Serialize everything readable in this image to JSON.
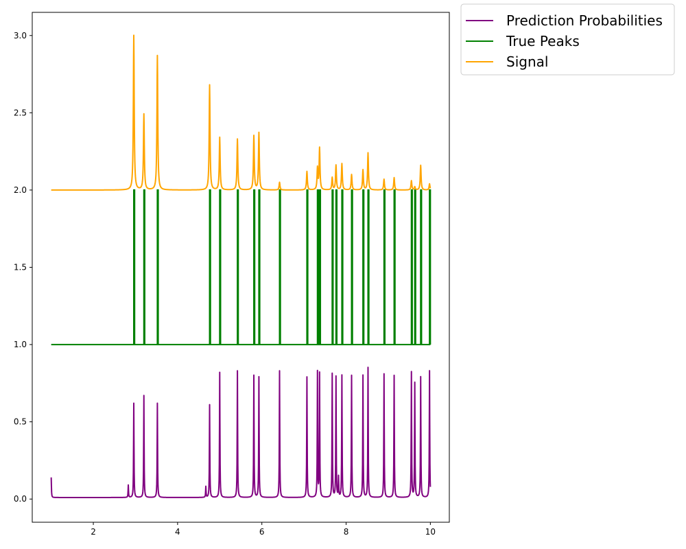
{
  "chart_data": {
    "type": "line",
    "title": "",
    "xlabel": "",
    "ylabel": "",
    "xlim": [
      0.55,
      10.45
    ],
    "ylim": [
      -0.15,
      3.15
    ],
    "grid": false,
    "x_ticks": [
      {
        "value": 2,
        "label": "2"
      },
      {
        "value": 4,
        "label": "4"
      },
      {
        "value": 6,
        "label": "6"
      },
      {
        "value": 8,
        "label": "8"
      },
      {
        "value": 10,
        "label": "10"
      }
    ],
    "y_ticks": [
      {
        "value": 0.0,
        "label": "0.0"
      },
      {
        "value": 0.5,
        "label": "0.5"
      },
      {
        "value": 1.0,
        "label": "1.0"
      },
      {
        "value": 1.5,
        "label": "1.5"
      },
      {
        "value": 2.0,
        "label": "2.0"
      },
      {
        "value": 2.5,
        "label": "2.5"
      },
      {
        "value": 3.0,
        "label": "3.0"
      }
    ],
    "legend": {
      "placement": "outside-top-right",
      "entries": [
        {
          "name": "Prediction Probabilities",
          "color": "#800080"
        },
        {
          "name": "True Peaks",
          "color": "#008000"
        },
        {
          "name": "Signal",
          "color": "#FFA500"
        }
      ]
    },
    "series": [
      {
        "name": "Prediction Probabilities",
        "color": "#800080",
        "baseline": 0.01,
        "x_range": [
          1.0,
          10.0
        ],
        "peaks": [
          {
            "x": 1.0,
            "y": 0.14
          },
          {
            "x": 2.83,
            "y": 0.09
          },
          {
            "x": 2.96,
            "y": 0.62
          },
          {
            "x": 3.2,
            "y": 0.67
          },
          {
            "x": 3.52,
            "y": 0.62
          },
          {
            "x": 4.67,
            "y": 0.08
          },
          {
            "x": 4.76,
            "y": 0.61
          },
          {
            "x": 5.0,
            "y": 0.82
          },
          {
            "x": 5.42,
            "y": 0.83
          },
          {
            "x": 5.81,
            "y": 0.8
          },
          {
            "x": 5.93,
            "y": 0.79
          },
          {
            "x": 6.42,
            "y": 0.83
          },
          {
            "x": 7.07,
            "y": 0.79
          },
          {
            "x": 7.32,
            "y": 0.82
          },
          {
            "x": 7.37,
            "y": 0.81
          },
          {
            "x": 7.67,
            "y": 0.81
          },
          {
            "x": 7.76,
            "y": 0.79
          },
          {
            "x": 7.82,
            "y": 0.14
          },
          {
            "x": 7.9,
            "y": 0.8
          },
          {
            "x": 8.13,
            "y": 0.8
          },
          {
            "x": 8.4,
            "y": 0.8
          },
          {
            "x": 8.52,
            "y": 0.85
          },
          {
            "x": 8.9,
            "y": 0.81
          },
          {
            "x": 9.14,
            "y": 0.8
          },
          {
            "x": 9.55,
            "y": 0.82
          },
          {
            "x": 9.63,
            "y": 0.75
          },
          {
            "x": 9.77,
            "y": 0.79
          },
          {
            "x": 9.98,
            "y": 0.83
          }
        ]
      },
      {
        "name": "True Peaks",
        "color": "#008000",
        "baseline": 1.0,
        "peak_value": 2.0,
        "x_range": [
          1.0,
          10.0
        ],
        "peak_x": [
          2.96,
          3.2,
          3.52,
          4.76,
          5.0,
          5.42,
          5.81,
          5.93,
          6.42,
          7.07,
          7.32,
          7.37,
          7.67,
          7.76,
          7.9,
          8.13,
          8.4,
          8.52,
          8.9,
          9.14,
          9.55,
          9.63,
          9.77,
          9.98
        ]
      },
      {
        "name": "Signal",
        "color": "#FFA500",
        "baseline": 2.0,
        "x_range": [
          1.0,
          10.0
        ],
        "peaks": [
          {
            "x": 2.96,
            "y": 3.0
          },
          {
            "x": 3.2,
            "y": 2.49
          },
          {
            "x": 3.52,
            "y": 2.87
          },
          {
            "x": 4.76,
            "y": 2.68
          },
          {
            "x": 5.0,
            "y": 2.34
          },
          {
            "x": 5.42,
            "y": 2.33
          },
          {
            "x": 5.81,
            "y": 2.35
          },
          {
            "x": 5.93,
            "y": 2.37
          },
          {
            "x": 6.42,
            "y": 2.05
          },
          {
            "x": 7.07,
            "y": 2.12
          },
          {
            "x": 7.32,
            "y": 2.14
          },
          {
            "x": 7.37,
            "y": 2.27
          },
          {
            "x": 7.67,
            "y": 2.08
          },
          {
            "x": 7.76,
            "y": 2.16
          },
          {
            "x": 7.9,
            "y": 2.17
          },
          {
            "x": 8.13,
            "y": 2.1
          },
          {
            "x": 8.4,
            "y": 2.13
          },
          {
            "x": 8.52,
            "y": 2.24
          },
          {
            "x": 8.9,
            "y": 2.07
          },
          {
            "x": 9.14,
            "y": 2.08
          },
          {
            "x": 9.55,
            "y": 2.06
          },
          {
            "x": 9.63,
            "y": 2.02
          },
          {
            "x": 9.77,
            "y": 2.16
          },
          {
            "x": 9.98,
            "y": 2.04
          }
        ]
      }
    ]
  }
}
